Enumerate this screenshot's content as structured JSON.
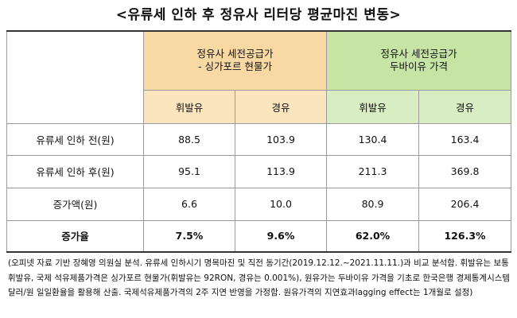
{
  "title": "<유류세 인하 후 정유사 리터당 평균마진 변동>",
  "headers": {
    "group1_line1": "정유사 세전공급가",
    "group1_line2": "- 싱가포르 현물가",
    "group2_line1": "정유사 세전공급가",
    "group2_line2": "두바이유 가격",
    "sub": [
      "휘발유",
      "경유",
      "휘발유",
      "경유"
    ]
  },
  "rows": [
    {
      "label": "유류세 인하 전(원)",
      "values": [
        "88.5",
        "103.9",
        "130.4",
        "163.4"
      ]
    },
    {
      "label": "유류세 인하 후(원)",
      "values": [
        "95.1",
        "113.9",
        "211.3",
        "369.8"
      ]
    },
    {
      "label": "증가액(원)",
      "values": [
        "6.6",
        "10.0",
        "80.9",
        "206.4"
      ]
    },
    {
      "label": "증가율",
      "values": [
        "7.5%",
        "9.6%",
        "62.0%",
        "126.3%"
      ]
    }
  ],
  "note": "(오피넷 자료 기반 장혜영 의원실 분석. 유류세 인하시기 명목마진 및 직전 동기간(2019.12.12.~2021.11.11.)과 비교 분석함. 휘발유는 보통휘발유, 국제 석유제품가격은 싱가포르 현물가(휘발유는 92RON, 경유는 0.001%), 원유가는 두바이유 가격을 기초로 한국은행 경제통계시스템 달러/원 일일환율을 활용해 산출. 국제석유제품가격의 2주 지연 반영을 가정함. 원유가격의 지연효과lagging effect는 1개월로 설정)",
  "colors": {
    "orange_header": "#f9d9a3",
    "green_header": "#c6e4a3"
  }
}
